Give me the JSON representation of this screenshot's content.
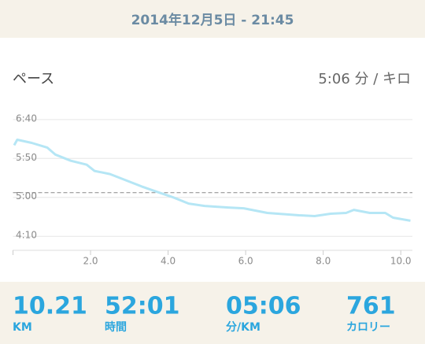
{
  "header": {
    "date": "2014年12月5日 - 21:45"
  },
  "chart_data": {
    "type": "line",
    "title": "ペース",
    "subtitle": "5:06 分 / キロ",
    "x": [
      0.03,
      0.11,
      0.48,
      0.88,
      1.09,
      1.49,
      1.9,
      2.1,
      2.5,
      2.91,
      3.32,
      3.72,
      4.13,
      4.53,
      4.94,
      5.55,
      5.95,
      6.56,
      7.38,
      7.78,
      8.19,
      8.59,
      8.79,
      9.2,
      9.6,
      9.8,
      10.25
    ],
    "values": [
      367,
      374,
      370,
      364,
      355,
      347,
      342,
      334,
      330,
      322,
      314,
      307,
      300,
      292,
      289,
      287,
      286,
      280,
      277,
      276,
      279,
      280,
      284,
      280,
      280,
      274,
      270
    ],
    "color": "#b5e6f5",
    "reference_line": 306,
    "xlim": [
      0,
      10.3
    ],
    "xticks": [
      {
        "value": 2,
        "label": "2.0"
      },
      {
        "value": 4,
        "label": "4.0"
      },
      {
        "value": 6,
        "label": "6.0"
      },
      {
        "value": 8,
        "label": "8.0"
      },
      {
        "value": 10,
        "label": "10.0"
      }
    ],
    "ylim": [
      232,
      417
    ],
    "yticks": [
      {
        "value": 400,
        "label": "6:40"
      },
      {
        "value": 350,
        "label": "5:50"
      },
      {
        "value": 300,
        "label": "5:00"
      },
      {
        "value": 250,
        "label": "4:10"
      }
    ],
    "grid": true
  },
  "stats": [
    {
      "value": "10.21",
      "unit": "KM"
    },
    {
      "value": "52:01",
      "unit": "時間"
    },
    {
      "value": "05:06",
      "unit": "分/KM"
    },
    {
      "value": "761",
      "unit": "カロリー"
    }
  ]
}
